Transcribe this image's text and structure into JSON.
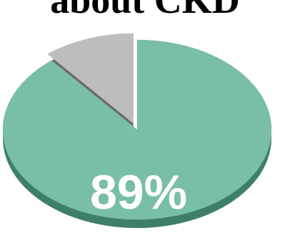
{
  "chart_data": {
    "type": "pie",
    "title": "about CKD",
    "slices": [
      {
        "value": 89,
        "color": "#79bea8",
        "side_color": "#3e7f68"
      },
      {
        "value": 11,
        "color": "#bdbdbd",
        "side_color": "#6a6a6a",
        "exploded": true
      }
    ],
    "data_labels": [
      "89%"
    ],
    "style": "3d",
    "legend": "none"
  }
}
